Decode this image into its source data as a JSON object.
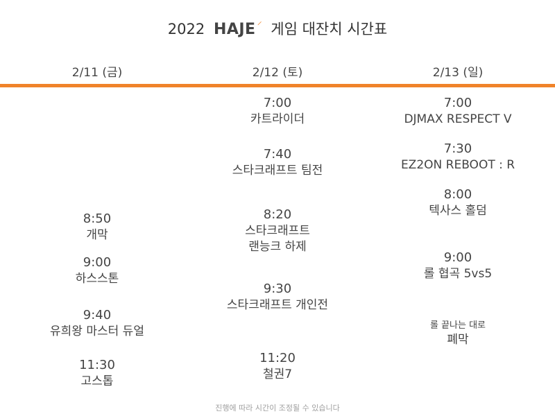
{
  "header": {
    "title_prefix": "2022",
    "brand": "HAJE",
    "title_suffix": "게임 대잔치 시간표"
  },
  "days": [
    {
      "label": "2/11 (금)",
      "events": [
        {
          "time": "8:50",
          "name": "개막"
        },
        {
          "time": "9:00",
          "name": "하스스톤"
        },
        {
          "time": "9:40",
          "name": "유희왕 마스터 듀얼"
        },
        {
          "time": "11:30",
          "name": "고스톱"
        }
      ]
    },
    {
      "label": "2/12 (토)",
      "events": [
        {
          "time": "7:00",
          "name": "카트라이더"
        },
        {
          "time": "7:40",
          "name": "스타크래프트 팀전"
        },
        {
          "time": "8:20",
          "name": "스타크래프트",
          "name2": "랜능크 하제"
        },
        {
          "time": "9:30",
          "name": "스타크래프트 개인전"
        },
        {
          "time": "11:20",
          "name": "철권7"
        }
      ]
    },
    {
      "label": "2/13 (일)",
      "events": [
        {
          "time": "7:00",
          "name": "DJMAX RESPECT V"
        },
        {
          "time": "7:30",
          "name": "EZ2ON REBOOT : R"
        },
        {
          "time": "8:00",
          "name": "텍사스 홀덤"
        },
        {
          "time": "9:00",
          "name": "롤 협곡 5vs5"
        },
        {
          "time": "롤 끝나는 대로",
          "name": "폐막"
        }
      ]
    }
  ],
  "footer": "진행에 따라 시간이 조정될 수 있습니다",
  "colors": {
    "accent": "#f0832a",
    "text": "#444444",
    "muted": "#a0a0a0"
  }
}
